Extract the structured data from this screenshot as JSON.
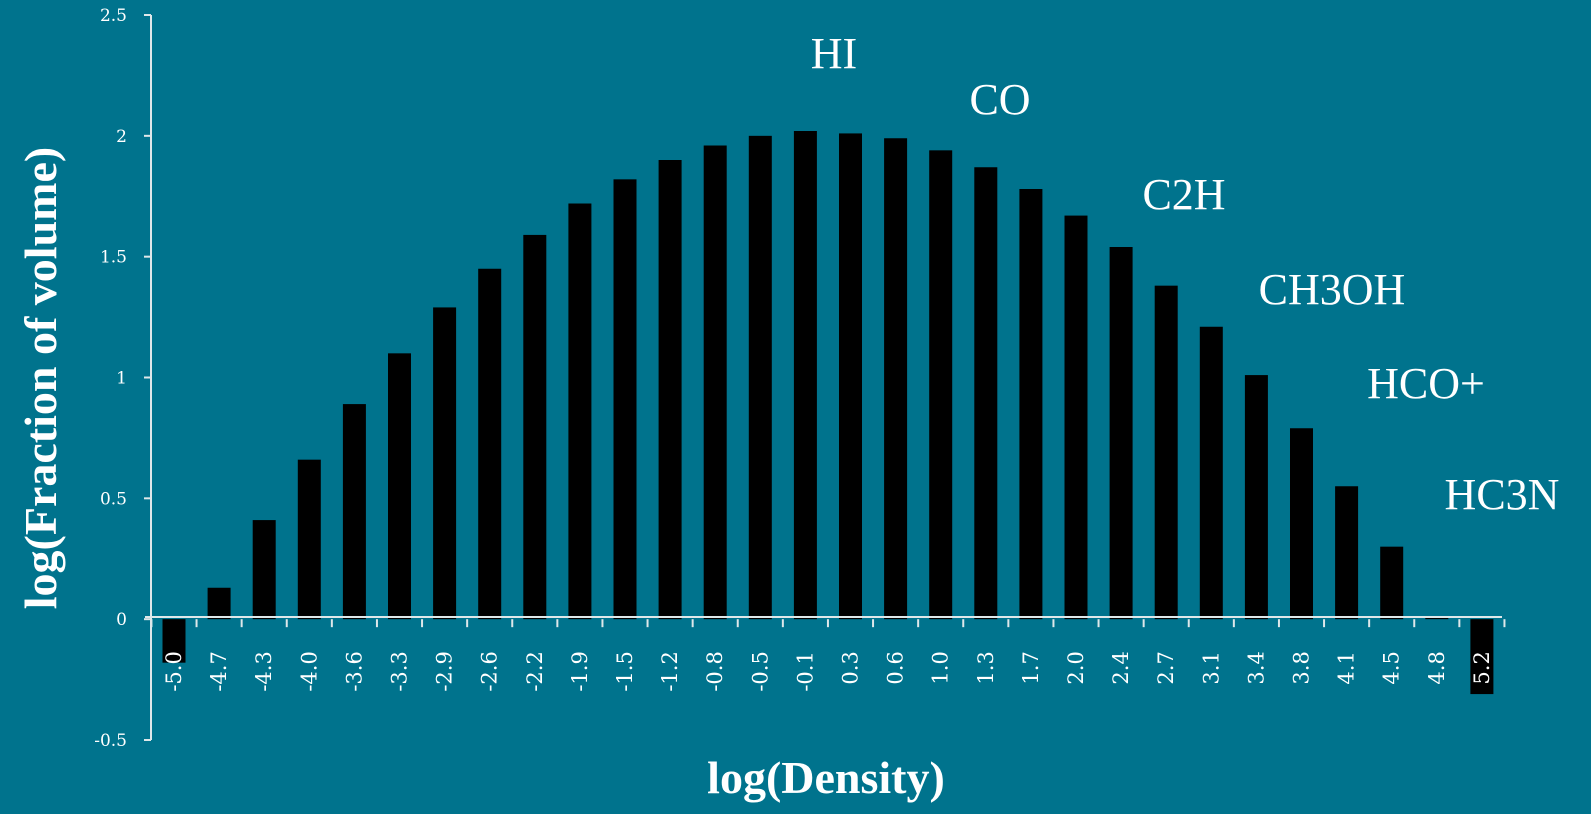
{
  "colors": {
    "background": "#00738d",
    "bar": "#000000",
    "axis": "#dfe8ea",
    "text": "#ffffff"
  },
  "chart_data": {
    "type": "bar",
    "xlabel": "log(Density)",
    "ylabel": "log(Fraction of volume)",
    "ylim": [
      -0.5,
      2.5
    ],
    "yticks": [
      "-0.5",
      "0",
      "0.5",
      "1",
      "1.5",
      "2",
      "2.5"
    ],
    "grid": false,
    "legend": "none",
    "categories": [
      "-5.0",
      "-4.7",
      "-4.3",
      "-4.0",
      "-3.6",
      "-3.3",
      "-2.9",
      "-2.6",
      "-2.2",
      "-1.9",
      "-1.5",
      "-1.2",
      "-0.8",
      "-0.5",
      "-0.1",
      "0.3",
      "0.6",
      "1.0",
      "1.3",
      "1.7",
      "2.0",
      "2.4",
      "2.7",
      "3.1",
      "3.4",
      "3.8",
      "4.1",
      "4.5",
      "4.8",
      "5.2"
    ],
    "values": [
      -0.18,
      0.13,
      0.41,
      0.66,
      0.89,
      1.1,
      1.29,
      1.45,
      1.59,
      1.72,
      1.82,
      1.9,
      1.96,
      2.0,
      2.02,
      2.01,
      1.99,
      1.94,
      1.87,
      1.78,
      1.67,
      1.54,
      1.38,
      1.21,
      1.01,
      0.79,
      0.55,
      0.3,
      0.01,
      -0.31
    ],
    "annotations": [
      "HI",
      "CO",
      "C2H",
      "CH3OH",
      "HCO+",
      "HC3N"
    ]
  }
}
